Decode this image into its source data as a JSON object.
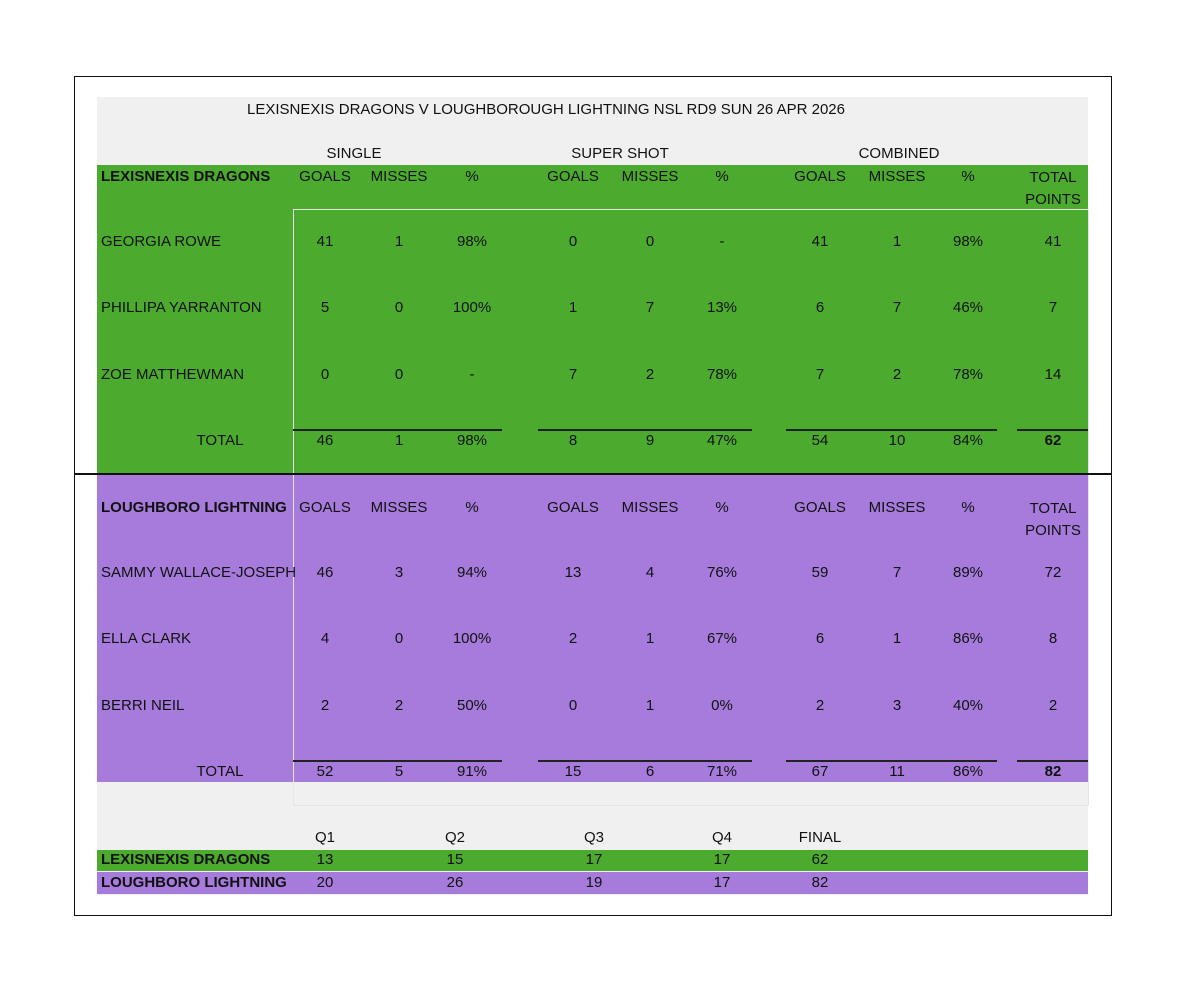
{
  "title": "LEXISNEXIS DRAGONS V LOUGHBOROUGH LIGHTNING NSL RD9 SUN 26 APR 2026",
  "groups": [
    "SINGLE",
    "SUPER SHOT",
    "COMBINED"
  ],
  "teams": [
    {
      "name": "LEXISNEXIS DRAGONS",
      "headers": [
        "GOALS",
        "MISSES",
        "%",
        "GOALS",
        "MISSES",
        "%",
        "GOALS",
        "MISSES",
        "%",
        "TOTAL POINTS"
      ],
      "players": [
        {
          "name": "GEORGIA ROWE",
          "stats": [
            41,
            1,
            "98%",
            0,
            0,
            "-",
            41,
            1,
            "98%",
            41
          ]
        },
        {
          "name": "PHILLIPA YARRANTON",
          "stats": [
            5,
            0,
            "100%",
            1,
            7,
            "13%",
            6,
            7,
            "46%",
            7
          ]
        },
        {
          "name": "ZOE MATTHEWMAN",
          "stats": [
            0,
            0,
            "-",
            7,
            2,
            "78%",
            7,
            2,
            "78%",
            14
          ]
        }
      ],
      "total": {
        "label": "TOTAL",
        "stats": [
          46,
          1,
          "98%",
          8,
          9,
          "47%",
          54,
          10,
          "84%",
          62
        ]
      }
    },
    {
      "name": "LOUGHBORO LIGHTNING",
      "headers": [
        "GOALS",
        "MISSES",
        "%",
        "GOALS",
        "MISSES",
        "%",
        "GOALS",
        "MISSES",
        "%",
        "TOTAL POINTS"
      ],
      "players": [
        {
          "name": "SAMMY WALLACE-JOSEPH",
          "stats": [
            46,
            3,
            "94%",
            13,
            4,
            "76%",
            59,
            7,
            "89%",
            72
          ]
        },
        {
          "name": "ELLA CLARK",
          "stats": [
            4,
            0,
            "100%",
            2,
            1,
            "67%",
            6,
            1,
            "86%",
            8
          ]
        },
        {
          "name": "BERRI NEIL",
          "stats": [
            2,
            2,
            "50%",
            0,
            1,
            "0%",
            2,
            3,
            "40%",
            2
          ]
        }
      ],
      "total": {
        "label": "TOTAL",
        "stats": [
          52,
          5,
          "91%",
          15,
          6,
          "71%",
          67,
          11,
          "86%",
          82
        ]
      }
    }
  ],
  "quarters": {
    "headers": [
      "Q1",
      "Q2",
      "Q3",
      "Q4",
      "FINAL"
    ],
    "rows": [
      {
        "team": "LEXISNEXIS DRAGONS",
        "scores": [
          13,
          15,
          17,
          17,
          62
        ]
      },
      {
        "team": "LOUGHBORO LIGHTNING",
        "scores": [
          20,
          26,
          19,
          17,
          82
        ]
      }
    ]
  }
}
